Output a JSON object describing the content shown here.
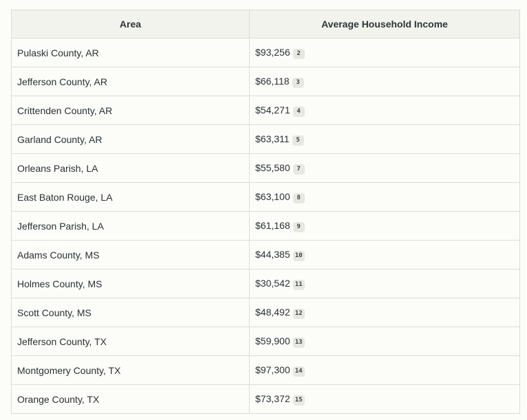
{
  "table": {
    "headers": [
      "Area",
      "Average Household Income"
    ],
    "rows": [
      {
        "area": "Pulaski County, AR",
        "income": "$93,256",
        "cite": "2"
      },
      {
        "area": "Jefferson County, AR",
        "income": "$66,118",
        "cite": "3"
      },
      {
        "area": "Crittenden County, AR",
        "income": "$54,271",
        "cite": "4"
      },
      {
        "area": "Garland County, AR",
        "income": "$63,311",
        "cite": "5"
      },
      {
        "area": "Orleans Parish, LA",
        "income": "$55,580",
        "cite": "7"
      },
      {
        "area": "East Baton Rouge, LA",
        "income": "$63,100",
        "cite": "8"
      },
      {
        "area": "Jefferson Parish, LA",
        "income": "$61,168",
        "cite": "9"
      },
      {
        "area": "Adams County, MS",
        "income": "$44,385",
        "cite": "10"
      },
      {
        "area": "Holmes County, MS",
        "income": "$30,542",
        "cite": "11"
      },
      {
        "area": "Scott County, MS",
        "income": "$48,492",
        "cite": "12"
      },
      {
        "area": "Jefferson County, TX",
        "income": "$59,900",
        "cite": "13"
      },
      {
        "area": "Montgomery County, TX",
        "income": "$97,300",
        "cite": "14"
      },
      {
        "area": "Orange County, TX",
        "income": "$73,372",
        "cite": "15"
      }
    ]
  }
}
